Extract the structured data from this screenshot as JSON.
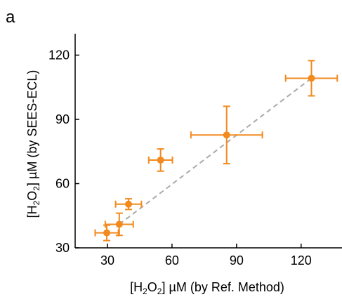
{
  "chart_data": {
    "type": "scatter",
    "panel_label": "a",
    "x_label_parts": [
      "[H",
      "2",
      "O",
      "2",
      "] µM (by Ref. Method)"
    ],
    "y_label_parts": [
      "[H",
      "2",
      "O",
      "2",
      "] µM (by SEES-ECL)"
    ],
    "x": [
      29.7,
      35.5,
      39.8,
      54.7,
      85.4,
      124.8
    ],
    "xerr": [
      5.4,
      6.5,
      6,
      5.5,
      16.6,
      12
    ],
    "values": [
      37,
      41,
      50.4,
      71,
      82.7,
      109.2
    ],
    "yerr": [
      3.6,
      5.2,
      2.5,
      5.2,
      13.4,
      8.2
    ],
    "color": "#f28a1e",
    "fit_line": {
      "x": [
        35.5,
        124.8
      ],
      "y": [
        41,
        109.2
      ],
      "color": "#aaaaaa"
    },
    "xlim": [
      15,
      139
    ],
    "ylim": [
      30,
      130
    ],
    "xticks": [
      30,
      60,
      90,
      120
    ],
    "yticks": [
      30,
      60,
      90,
      120
    ]
  }
}
